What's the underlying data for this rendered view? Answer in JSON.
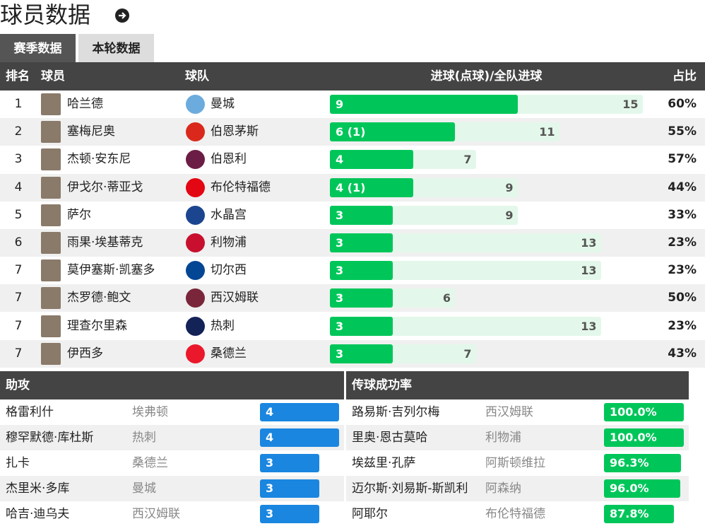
{
  "header": {
    "title": "球员数据"
  },
  "tabs": [
    "赛季数据",
    "本轮数据"
  ],
  "goals_table": {
    "columns": [
      "排名",
      "球员",
      "球队",
      "进球(点球)/全队进球",
      "占比"
    ],
    "rows": [
      {
        "rank": "1",
        "player": "哈兰德",
        "team": "曼城",
        "goals": 9,
        "team_goals": 15,
        "share": "60%"
      },
      {
        "rank": "2",
        "player": "塞梅尼奥",
        "team": "伯恩茅斯",
        "goals": {
          "value": 6,
          "label": "6 (1)"
        },
        "team_goals": 11,
        "share": "55%"
      },
      {
        "rank": "3",
        "player": "杰顿·安东尼",
        "team": "伯恩利",
        "goals": 4,
        "team_goals": 7,
        "share": "57%"
      },
      {
        "rank": "4",
        "player": "伊戈尔·蒂亚戈",
        "team": "布伦特福德",
        "goals": {
          "value": 4,
          "label": "4 (1)"
        },
        "team_goals": 9,
        "share": "44%"
      },
      {
        "rank": "5",
        "player": "萨尔",
        "team": "水晶宫",
        "goals": 3,
        "team_goals": 9,
        "share": "33%"
      },
      {
        "rank": "6",
        "player": "雨果·埃基蒂克",
        "team": "利物浦",
        "goals": 3,
        "team_goals": 13,
        "share": "23%"
      },
      {
        "rank": "7",
        "player": "莫伊塞斯·凯塞多",
        "team": "切尔西",
        "goals": 3,
        "team_goals": 13,
        "share": "23%"
      },
      {
        "rank": "7",
        "player": "杰罗德·鲍文",
        "team": "西汉姆联",
        "goals": 3,
        "team_goals": 6,
        "share": "50%"
      },
      {
        "rank": "7",
        "player": "理查尔里森",
        "team": "热刺",
        "goals": 3,
        "team_goals": 13,
        "share": "23%"
      },
      {
        "rank": "7",
        "player": "伊西多",
        "team": "桑德兰",
        "goals": 3,
        "team_goals": 7,
        "share": "43%"
      }
    ]
  },
  "assists": {
    "title": "助攻",
    "rows": [
      {
        "player": "格雷利什",
        "team": "埃弗顿",
        "assists": 4
      },
      {
        "player": "穆罕默德·库杜斯",
        "team": "热刺",
        "assists": 4
      },
      {
        "player": "扎卡",
        "team": "桑德兰",
        "assists": 3
      },
      {
        "player": "杰里米·多库",
        "team": "曼城",
        "assists": 3
      },
      {
        "player": "哈吉·迪乌夫",
        "team": "西汉姆联",
        "assists": 3
      }
    ]
  },
  "passing": {
    "title": "传球成功率",
    "rows": [
      {
        "player": "路易斯·吉列尔梅",
        "team": "西汉姆联",
        "rate": {
          "value": 100,
          "label": "100.0%"
        }
      },
      {
        "player": "里奥·恩古莫哈",
        "team": "利物浦",
        "rate": {
          "value": 100,
          "label": "100.0%"
        }
      },
      {
        "player": "埃兹里·孔萨",
        "team": "阿斯顿维拉",
        "rate": {
          "value": 96.3,
          "label": "96.3%"
        }
      },
      {
        "player": "迈尔斯·刘易斯-斯凯利",
        "team": "阿森纳",
        "rate": {
          "value": 96,
          "label": "96.0%"
        }
      },
      {
        "player": "阿耶尔",
        "team": "布伦特福德",
        "rate": {
          "value": 87.8,
          "label": "87.8%"
        }
      }
    ]
  }
}
